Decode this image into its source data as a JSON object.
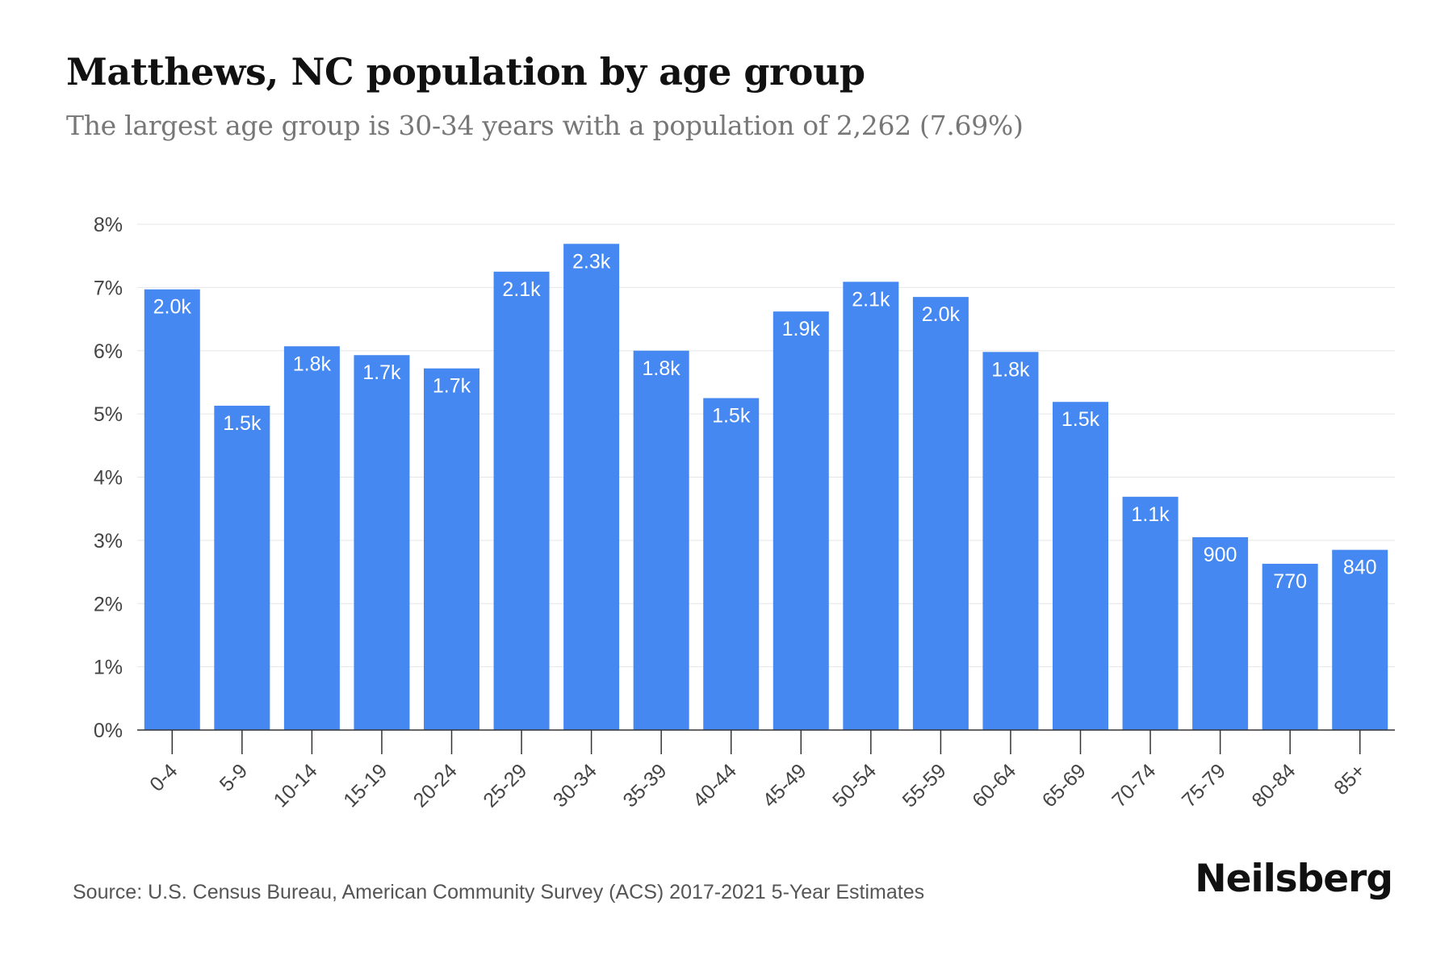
{
  "header": {
    "title": "Matthews, NC population by age group",
    "subtitle": "The largest age group is 30-34 years with a population of 2,262 (7.69%)"
  },
  "footer": {
    "source": "Source: U.S. Census Bureau, American Community Survey (ACS) 2017-2021 5-Year Estimates",
    "brand": "Neilsberg"
  },
  "chart_data": {
    "type": "bar",
    "title": "Matthews, NC population by age group",
    "subtitle": "The largest age group is 30-34 years with a population of 2,262 (7.69%)",
    "categories": [
      "0-4",
      "5-9",
      "10-14",
      "15-19",
      "20-24",
      "25-29",
      "30-34",
      "35-39",
      "40-44",
      "45-49",
      "50-54",
      "55-59",
      "60-64",
      "65-69",
      "70-74",
      "75-79",
      "80-84",
      "85+"
    ],
    "values": [
      6.97,
      5.13,
      6.07,
      5.93,
      5.72,
      7.25,
      7.69,
      6.0,
      5.25,
      6.62,
      7.09,
      6.85,
      5.98,
      5.19,
      3.69,
      3.05,
      2.63,
      2.85
    ],
    "data_labels": [
      "2.0k",
      "1.5k",
      "1.8k",
      "1.7k",
      "1.7k",
      "2.1k",
      "2.3k",
      "1.8k",
      "1.5k",
      "1.9k",
      "2.1k",
      "2.0k",
      "1.8k",
      "1.5k",
      "1.1k",
      "900",
      "770",
      "840"
    ],
    "y_ticks": [
      "0%",
      "1%",
      "2%",
      "3%",
      "4%",
      "5%",
      "6%",
      "7%",
      "8%"
    ],
    "ylim": [
      0,
      8
    ],
    "xlabel": "",
    "ylabel": "",
    "grid": true,
    "legend": "none",
    "colors": {
      "bar": "#4688f1",
      "grid": "#e6e6e6",
      "axis": "#333333",
      "bar_label": "#ffffff"
    }
  }
}
